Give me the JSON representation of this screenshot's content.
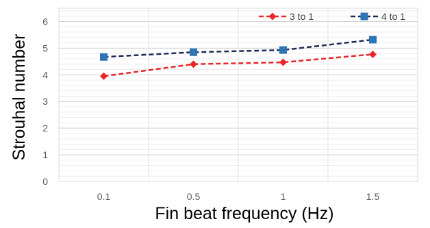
{
  "chart_data": {
    "type": "line",
    "title": "",
    "xlabel": "Fin beat frequency (Hz)",
    "ylabel": "Strouhal number",
    "categories": [
      "0.1",
      "0.5",
      "1",
      "1.5"
    ],
    "ylim": [
      0,
      6.5
    ],
    "yticks": [
      "0",
      "1",
      "2",
      "3",
      "4",
      "5",
      "6"
    ],
    "grid": true,
    "legend_position": "top-right",
    "series": [
      {
        "name": "3 to 1",
        "values": [
          3.95,
          4.4,
          4.47,
          4.77
        ],
        "color": "#e8262a",
        "line_style": "dashed",
        "marker": "diamond"
      },
      {
        "name": "4 to 1",
        "values": [
          4.67,
          4.85,
          4.93,
          5.32
        ],
        "color": "#1f2a56",
        "line_style": "dashed",
        "marker": "square",
        "marker_color": "#2e75b6"
      }
    ]
  }
}
